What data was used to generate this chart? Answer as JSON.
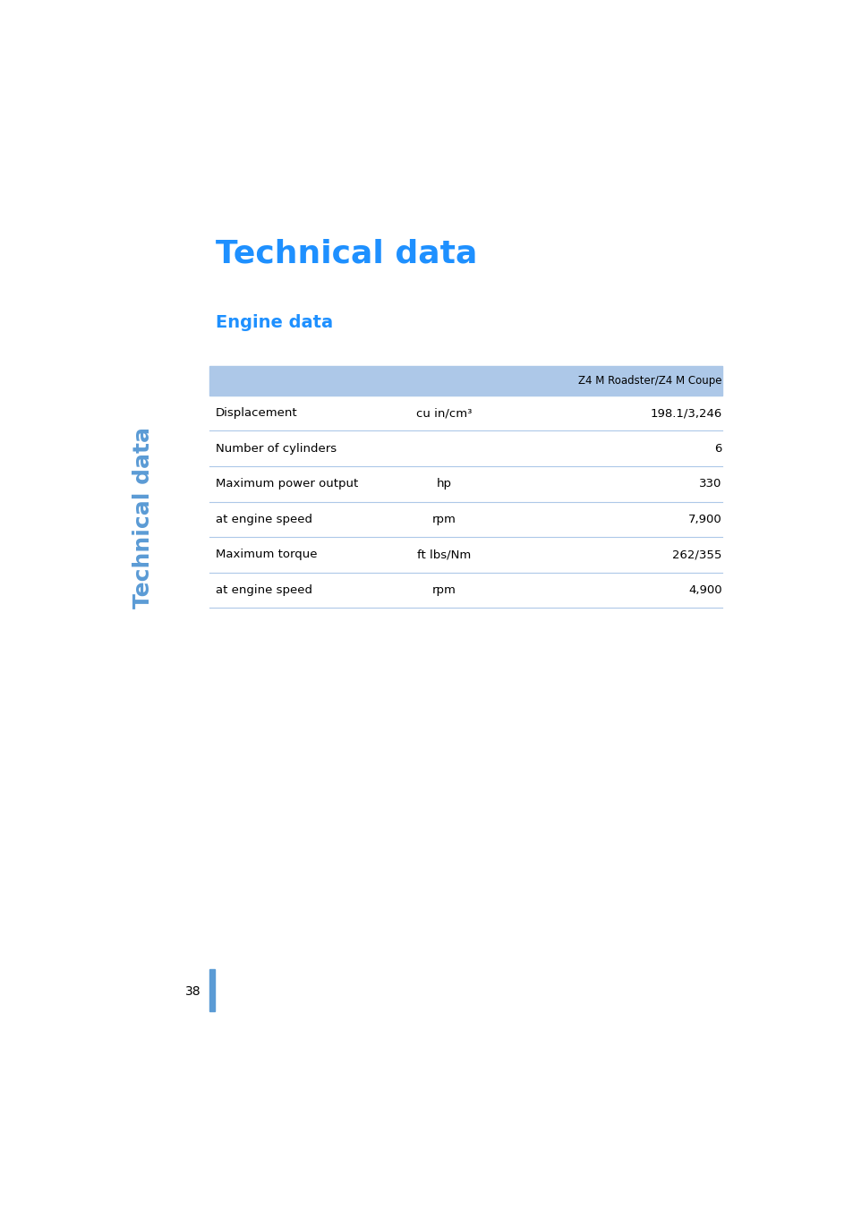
{
  "page_title": "Technical data",
  "section_title": "Engine data",
  "side_label": "Technical data",
  "page_number": "38",
  "header_color": "#adc8e8",
  "title_color": "#1e90ff",
  "text_color": "#000000",
  "line_color": "#adc8e8",
  "column_header": "Z4 M Roadster/Z4 M Coupe",
  "rows": [
    {
      "label": "Displacement",
      "unit": "cu in/cm³",
      "value": "198.1/3,246"
    },
    {
      "label": "Number of cylinders",
      "unit": "",
      "value": "6"
    },
    {
      "label": "Maximum power output",
      "unit": "hp",
      "value": "330"
    },
    {
      "label": "at engine speed",
      "unit": "rpm",
      "value": "7,900"
    },
    {
      "label": "Maximum torque",
      "unit": "ft lbs/Nm",
      "value": "262/355"
    },
    {
      "label": "at engine speed",
      "unit": "rpm",
      "value": "4,900"
    }
  ],
  "bg_color": "#ffffff",
  "sidebar_color": "#5b9bd5",
  "figsize": [
    9.54,
    13.51
  ],
  "dpi": 100
}
